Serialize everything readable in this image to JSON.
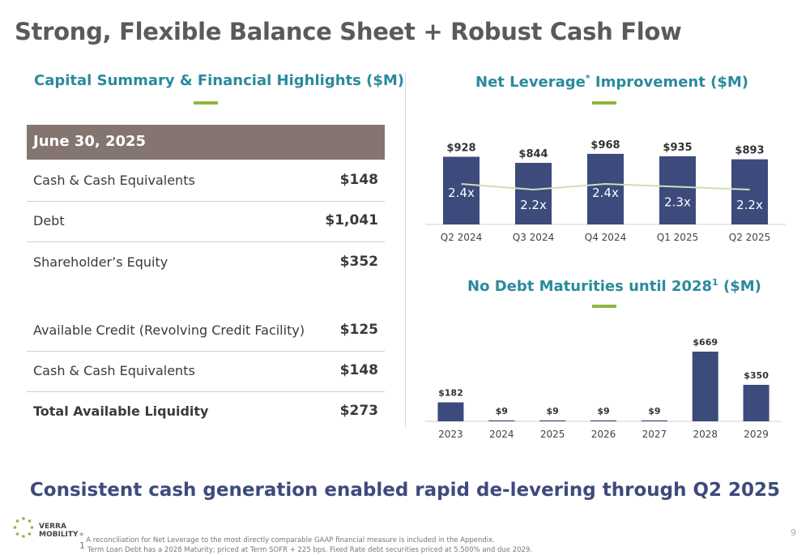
{
  "title": "Strong, Flexible Balance Sheet + Robust Cash Flow",
  "left_panel": {
    "heading": "Capital Summary & Financial Highlights ($M)",
    "table_header": "June 30, 2025",
    "rows": [
      {
        "label": "Cash & Cash Equivalents",
        "value": "$148"
      },
      {
        "label": "Debt",
        "value": "$1,041"
      },
      {
        "label": "Shareholder’s Equity",
        "value": "$352"
      },
      {
        "label": "Available Credit (Revolving Credit Facility)",
        "value": "$125"
      },
      {
        "label": "Cash & Cash Equivalents",
        "value": "$148"
      },
      {
        "label": "Total Available Liquidity",
        "value": "$273"
      }
    ]
  },
  "leverage_heading": {
    "text": "Net Leverage",
    "sup": "*",
    "suffix": " Improvement ($M)"
  },
  "maturity_heading": {
    "text": "No Debt Maturities until 2028",
    "sup": "1",
    "suffix": " ($M)"
  },
  "chart_data": [
    {
      "type": "bar",
      "categories": [
        "Q2 2024",
        "Q3 2024",
        "Q4 2024",
        "Q1 2025",
        "Q2 2025"
      ],
      "values": [
        928,
        844,
        968,
        935,
        893
      ],
      "value_labels": [
        "$928",
        "$844",
        "$968",
        "$935",
        "$893"
      ],
      "line_series": {
        "values": [
          2.4,
          2.2,
          2.4,
          2.3,
          2.2
        ],
        "labels": [
          "2.4x",
          "2.2x",
          "2.4x",
          "2.3x",
          "2.2x"
        ]
      },
      "ylim": [
        0,
        1000
      ],
      "grid": false,
      "colors": {
        "bar": "#3d4a7c",
        "line": "#cfe0b4"
      }
    },
    {
      "type": "bar",
      "categories": [
        "2023",
        "2024",
        "2025",
        "2026",
        "2027",
        "2028",
        "2029"
      ],
      "values": [
        182,
        9,
        9,
        9,
        9,
        669,
        350
      ],
      "value_labels": [
        "$182",
        "$9",
        "$9",
        "$9",
        "$9",
        "$669",
        "$350"
      ],
      "ylim": [
        0,
        700
      ],
      "grid": false,
      "colors": {
        "bar": "#3d4a7c"
      }
    }
  ],
  "tagline": "Consistent cash generation enabled rapid de-levering through Q2 2025",
  "logo": {
    "line1": "VERRA",
    "line2": "MOBILITY"
  },
  "footnotes": {
    "f1_mark": "*",
    "f1": " A reconciliation for Net Leverage to the most directly comparable GAAP financial measure is included in the Appendix.",
    "f2_mark": "1",
    "f2": " Term Loan Debt has a 2028 Maturity; priced at Term SOFR + 225 bps. Fixed Rate debt securities priced at 5.500% and due 2029."
  },
  "page_number": "9"
}
